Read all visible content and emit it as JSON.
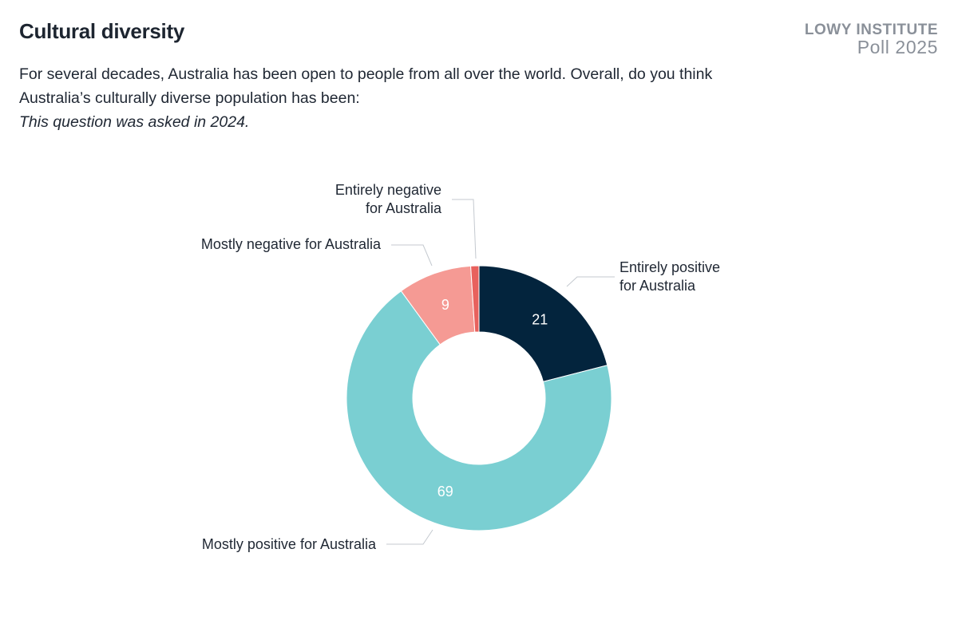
{
  "header": {
    "title": "Cultural diversity",
    "brand_org": "LOWY INSTITUTE",
    "brand_poll": "Poll 2025",
    "question": "For several decades, Australia has been open to people from all over the world. Overall, do you think Australia’s culturally diverse population has been:",
    "note": "This question was asked in 2024."
  },
  "chart_data": {
    "type": "pie",
    "variant": "donut",
    "categories": [
      "Entirely positive for Australia",
      "Mostly positive for Australia",
      "Mostly negative for Australia",
      "Entirely negative for Australia"
    ],
    "values": [
      21,
      69,
      9,
      1
    ],
    "data_labels": [
      "21",
      "69",
      "9",
      ""
    ],
    "category_label_lines": [
      [
        "Entirely positive",
        "for Australia"
      ],
      [
        "Mostly positive for Australia"
      ],
      [
        "Mostly negative for Australia"
      ],
      [
        "Entirely negative",
        "for Australia"
      ]
    ],
    "colors": [
      "#03243d",
      "#7acfd2",
      "#f59a94",
      "#e8615d"
    ],
    "start_angle": "12 o'clock, clockwise"
  }
}
